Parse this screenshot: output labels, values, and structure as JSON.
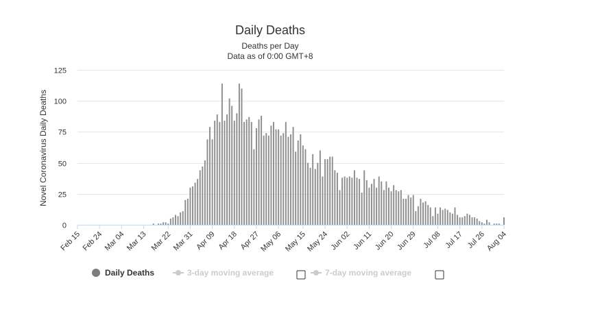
{
  "chart_data": {
    "type": "bar",
    "title": "Daily Deaths",
    "subtitle_lines": [
      "Deaths per Day",
      "Data as of 0:00 GMT+8"
    ],
    "ylabel": "Novel Coronavirus Daily Deaths",
    "xlabel": "",
    "ylim": [
      0,
      125
    ],
    "y_ticks": [
      0,
      25,
      50,
      75,
      100,
      125
    ],
    "x_start": "Feb 15",
    "x_end": "Aug 04",
    "x_tick_labels": [
      "Feb 15",
      "Feb 24",
      "Mar 04",
      "Mar 13",
      "Mar 22",
      "Mar 31",
      "Apr 09",
      "Apr 18",
      "Apr 27",
      "May 06",
      "May 15",
      "May 24",
      "Jun 02",
      "Jun 11",
      "Jun 20",
      "Jun 29",
      "Jul 08",
      "Jul 17",
      "Jul 26",
      "Aug 04"
    ],
    "grid": true,
    "legend_position": "bottom",
    "series": [
      {
        "name": "Daily Deaths",
        "color": "#8f8f8f",
        "values": [
          0,
          0,
          0,
          0,
          0,
          0,
          0,
          0,
          0,
          0,
          0,
          0,
          0,
          0,
          0,
          0,
          0,
          0,
          0,
          0,
          0,
          0,
          0,
          0,
          0,
          0,
          0,
          0,
          0,
          0,
          0,
          1,
          0,
          1,
          1,
          2,
          2,
          1,
          5,
          6,
          8,
          7,
          10,
          11,
          20,
          21,
          30,
          31,
          34,
          37,
          44,
          47,
          52,
          69,
          79,
          69,
          84,
          89,
          83,
          114,
          84,
          89,
          102,
          96,
          84,
          90,
          114,
          110,
          83,
          85,
          87,
          83,
          61,
          78,
          85,
          88,
          72,
          74,
          72,
          80,
          83,
          77,
          77,
          72,
          74,
          83,
          71,
          73,
          79,
          59,
          68,
          73,
          64,
          61,
          50,
          46,
          57,
          45,
          50,
          60,
          39,
          53,
          53,
          55,
          55,
          44,
          42,
          28,
          38,
          39,
          38,
          39,
          38,
          44,
          38,
          37,
          26,
          44,
          36,
          30,
          33,
          37,
          30,
          39,
          35,
          28,
          35,
          30,
          27,
          32,
          28,
          27,
          28,
          21,
          21,
          24,
          22,
          24,
          11,
          15,
          21,
          18,
          19,
          16,
          14,
          7,
          14,
          9,
          14,
          12,
          13,
          12,
          10,
          9,
          14,
          8,
          6,
          6,
          7,
          9,
          8,
          6,
          6,
          5,
          3,
          2,
          1,
          4,
          2,
          0,
          1,
          1,
          1,
          0,
          6
        ]
      }
    ]
  },
  "legend": {
    "items": [
      {
        "label": "Daily Deaths",
        "color": "#7d7d7d",
        "active": true
      },
      {
        "label": "3-day moving average",
        "color": "#cccccc",
        "active": false
      },
      {
        "label": "7-day moving average",
        "color": "#cccccc",
        "active": false
      }
    ]
  }
}
